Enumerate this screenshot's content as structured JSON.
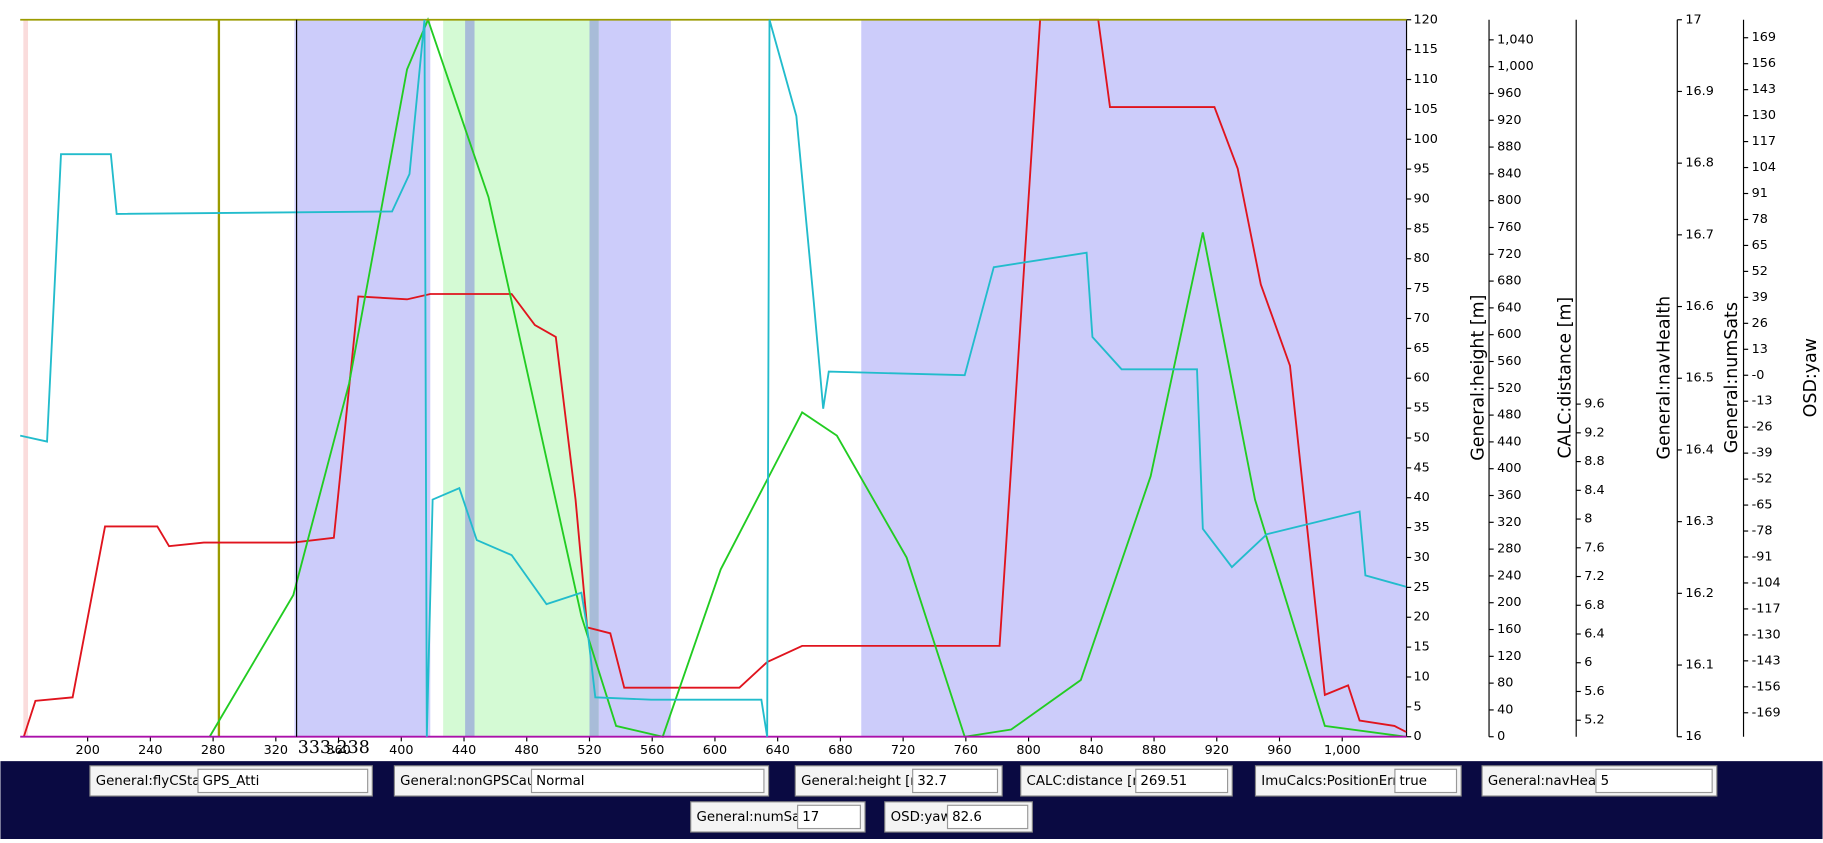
{
  "chart_data": {
    "type": "line",
    "xlim": [
      157,
      1041
    ],
    "xticks": [
      200,
      240,
      280,
      320,
      360,
      400,
      440,
      480,
      520,
      560,
      600,
      640,
      680,
      720,
      760,
      800,
      840,
      880,
      920,
      960,
      {
        "value": 1000,
        "label": "1,000"
      }
    ],
    "ylim": [
      0,
      120
    ],
    "yticks": [
      0,
      5,
      10,
      15,
      20,
      25,
      30,
      35,
      40,
      45,
      50,
      55,
      60,
      65,
      70,
      75,
      80,
      85,
      90,
      95,
      100,
      105,
      110,
      115,
      120
    ],
    "cursor_x": 333.238,
    "marker_x": 283.7,
    "marker_color": "#9b9b00",
    "bands": [
      {
        "range": [
          159,
          162
        ],
        "color": "#fadcdc"
      },
      {
        "range": [
          331.9,
          418.5
        ],
        "color": "#ccccfa"
      },
      {
        "range": [
          426.7,
          522.2
        ],
        "color": "#d4fad4"
      },
      {
        "range": [
          440.7,
          446.7
        ],
        "color": "#a8bcd8"
      },
      {
        "range": [
          520,
          526
        ],
        "color": "#a8bcd8"
      },
      {
        "range": [
          526,
          571.9
        ],
        "color": "#ccccfa"
      },
      {
        "range": [
          693.3,
          1040.7
        ],
        "color": "#ccccfa"
      }
    ],
    "series": [
      {
        "name": "General:height [m]",
        "color": "#e0141e",
        "x": [
          159.3,
          166.7,
          190.4,
          211.1,
          244.4,
          251.9,
          274.1,
          331.1,
          357.0,
          372.6,
          403.7,
          418.5,
          470.4,
          485.2,
          498.5,
          511.1,
          518.5,
          533.3,
          542.2,
          615.6,
          633.3,
          655.6,
          781.5,
          807.4,
          844.4,
          851.9,
          918.5,
          933.3,
          948.1,
          966.7,
          988.9,
          1003.7,
          1011.1,
          1033.3,
          1040.7
        ],
        "values": [
          0,
          6.0,
          6.6,
          35.2,
          35.2,
          31.9,
          32.5,
          32.5,
          33.3,
          73.7,
          73.2,
          74.1,
          74.1,
          68.9,
          66.9,
          39.7,
          18.3,
          17.3,
          8.2,
          8.2,
          12.5,
          15.2,
          15.2,
          120,
          120,
          105.4,
          105.4,
          95.1,
          75.7,
          62.1,
          7.0,
          8.6,
          2.7,
          1.8,
          0.8
        ],
        "lim": [
          0,
          1070
        ],
        "ticks": [
          0,
          40,
          80,
          120,
          160,
          200,
          240,
          280,
          320,
          360,
          400,
          440,
          480,
          520,
          560,
          600,
          640,
          680,
          720,
          760,
          800,
          840,
          880,
          920,
          960,
          {
            "value": 1000,
            "label": "1,000"
          },
          {
            "value": 1040,
            "label": "1,040"
          }
        ]
      },
      {
        "name": "CALC:distance [m]",
        "color": "#22cc22",
        "x": [
          277.8,
          331.1,
          366.7,
          403.7,
          417.0,
          455.6,
          514.8,
          537,
          566.7,
          603.7,
          655.6,
          677.8,
          722.2,
          759.3,
          788.9,
          833.3,
          877.8,
          911.1,
          944.4,
          988.9,
          1040.7
        ],
        "values": [
          0,
          23.7,
          59.1,
          111.7,
          120,
          90.3,
          20.2,
          1.8,
          0,
          28.0,
          54.3,
          50.4,
          30.0,
          0,
          1.2,
          9.5,
          43.6,
          84.4,
          39.7,
          1.8,
          0
        ],
        "lim": [
          4.97,
          14.95
        ],
        "ticks": [
          5.2,
          5.6,
          6,
          6.4,
          6.8,
          7.2,
          7.6,
          8,
          8.4,
          8.8,
          9.2,
          9.6
        ]
      },
      {
        "name": "General:navHealth",
        "color": "#aa10aa",
        "x": [
          157,
          1041
        ],
        "values": [
          0,
          0
        ],
        "lim": [
          16,
          17
        ],
        "ticks": [
          16,
          16.1,
          16.2,
          16.3,
          16.4,
          16.5,
          16.6,
          16.7,
          16.8,
          16.9,
          17
        ]
      },
      {
        "name": "General:numSats",
        "color": "#9b9b00",
        "x": [
          157,
          1041
        ],
        "values": [
          120,
          120
        ]
      },
      {
        "name": "OSD:yaw",
        "color": "#22bccc",
        "x": [
          157,
          174.1,
          183,
          214.8,
          218.5,
          394.1,
          405.2,
          414.8,
          416.3,
          420,
          437,
          448.1,
          470.4,
          492.6,
          514.8,
          518.5,
          523.7,
          559.3,
          629.6,
          633.3,
          634.8,
          651.9,
          663,
          669,
          672.6,
          759.3,
          777.8,
          837,
          840.7,
          859.3,
          907.4,
          911.1,
          929.6,
          951.9,
          1011.1,
          1014.8,
          1040.7
        ],
        "values": [
          50.4,
          49.4,
          97.5,
          97.5,
          87.5,
          87.9,
          94.2,
          120,
          0,
          39.7,
          41.6,
          32.9,
          30.4,
          22.2,
          24.1,
          18.3,
          6.6,
          6.2,
          6.2,
          0,
          120,
          103.9,
          72.8,
          54.9,
          61.1,
          60.5,
          78.6,
          81.0,
          66.9,
          61.5,
          61.5,
          34.8,
          28.4,
          33.9,
          37.7,
          27.0,
          25.1
        ],
        "lim": [
          -181,
          178
        ],
        "ticks": [
          169,
          156,
          143,
          130,
          117,
          104,
          91,
          78,
          65,
          52,
          39,
          26,
          13,
          {
            "value": 0,
            "label": "-0"
          },
          -13,
          -26,
          -39,
          -52,
          -65,
          -78,
          -91,
          -104,
          -117,
          -130,
          -143,
          -156,
          -169
        ]
      }
    ]
  },
  "fields": [
    {
      "label": "General:flyCState",
      "value": "GPS_Atti",
      "color": "#000000"
    },
    {
      "label": "General:nonGPSCause",
      "value": "Normal",
      "color": "#000000"
    },
    {
      "label": "General:height [m]",
      "value": "32.7",
      "color": "#e0141e"
    },
    {
      "label": "CALC:distance [m]",
      "value": "269.51",
      "color": "#22cc22"
    },
    {
      "label": "ImuCalcs:PositionError",
      "value": "true",
      "color": "#000000"
    },
    {
      "label": "General:navHealth",
      "value": "5",
      "color": "#aa10aa"
    },
    {
      "label": "General:numSats",
      "value": "17",
      "color": "#9b9b00"
    },
    {
      "label": "OSD:yaw",
      "value": "82.6",
      "color": "#22bccc"
    }
  ]
}
